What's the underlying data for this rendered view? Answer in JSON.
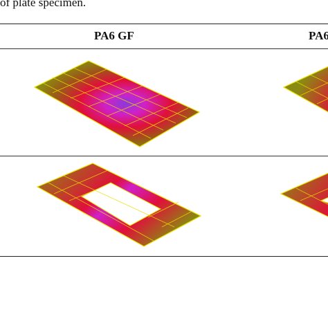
{
  "caption": "of plate specimen.",
  "table": {
    "columns": [
      "PA6 GF",
      "PA6"
    ],
    "rows": [
      {
        "cells": [
          {
            "image": "plate-deformation-center-dip"
          },
          {
            "image": "plate-deformation-center-dip"
          }
        ]
      },
      {
        "cells": [
          {
            "image": "plate-deformation-frame-trough"
          },
          {
            "image": "plate-deformation-frame-trough"
          }
        ]
      }
    ]
  },
  "colors": {
    "plate_olive": "#8a8a12",
    "mesh_yellow": "#e8e000",
    "deform_red": "#e0103a",
    "deform_magenta": "#d020c8",
    "deform_purple": "#8a3ad8"
  }
}
